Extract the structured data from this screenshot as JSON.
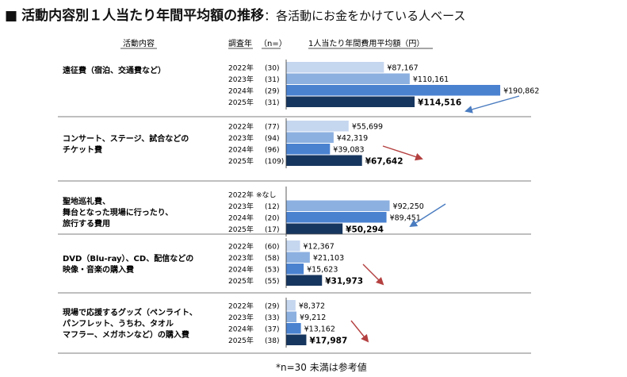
{
  "title": {
    "bullet": "■",
    "main": "活動内容別１人当たり年間平均額の推移",
    "sub": "：各活動にお金をかけている人ベース"
  },
  "header": {
    "activity": "活動内容",
    "year": "調査年",
    "n": "（n=）",
    "amount": "1人当たり年間費用平均額（円）"
  },
  "footnote": "*n=30 未満は参考値",
  "colors": {
    "2022": "#c5d6ef",
    "2023": "#8cb0e0",
    "2024": "#4a82d0",
    "2025": "#17365f",
    "arrow_up": "#4a7cc0",
    "arrow_down": "#b44040",
    "divider": "#555555"
  },
  "chart_data": {
    "type": "bar",
    "orientation": "horizontal",
    "unit": "円",
    "series_years": [
      "2022年",
      "2023年",
      "2024年",
      "2025年"
    ],
    "groups": [
      {
        "label_lines": [
          "遠征費（宿泊、交通費など）"
        ],
        "rows": [
          {
            "year": "2022年",
            "n": "(30)",
            "value": 87167,
            "label": "¥87,167"
          },
          {
            "year": "2023年",
            "n": "(31)",
            "value": 110161,
            "label": "¥110,161"
          },
          {
            "year": "2024年",
            "n": "(29)",
            "value": 190862,
            "label": "¥190,862"
          },
          {
            "year": "2025年",
            "n": "(31)",
            "value": 114516,
            "label": "¥114,516"
          }
        ],
        "trend": "down"
      },
      {
        "label_lines": [
          "コンサート、ステージ、試合などの",
          "チケット費"
        ],
        "rows": [
          {
            "year": "2022年",
            "n": "(77)",
            "value": 55699,
            "label": "¥55,699"
          },
          {
            "year": "2023年",
            "n": "(94)",
            "value": 42319,
            "label": "¥42,319"
          },
          {
            "year": "2024年",
            "n": "(96)",
            "value": 39083,
            "label": "¥39,083"
          },
          {
            "year": "2025年",
            "n": "(109)",
            "value": 67642,
            "label": "¥67,642"
          }
        ],
        "trend": "up"
      },
      {
        "label_lines": [
          "聖地巡礼費、",
          "舞台となった現場に行ったり、",
          "旅行する費用"
        ],
        "rows": [
          {
            "year": "2022年",
            "n": "※なし",
            "value": null,
            "label": ""
          },
          {
            "year": "2023年",
            "n": "(12)",
            "value": 92250,
            "label": "¥92,250"
          },
          {
            "year": "2024年",
            "n": "(20)",
            "value": 89451,
            "label": "¥89,451"
          },
          {
            "year": "2025年",
            "n": "(17)",
            "value": 50294,
            "label": "¥50,294"
          }
        ],
        "trend": "down"
      },
      {
        "label_lines": [
          "DVD（Blu-ray）、CD、配信などの",
          "映像・音楽の購入費"
        ],
        "rows": [
          {
            "year": "2022年",
            "n": "(60)",
            "value": 12367,
            "label": "¥12,367"
          },
          {
            "year": "2023年",
            "n": "(58)",
            "value": 21103,
            "label": "¥21,103"
          },
          {
            "year": "2024年",
            "n": "(53)",
            "value": 15623,
            "label": "¥15,623"
          },
          {
            "year": "2025年",
            "n": "(55)",
            "value": 31973,
            "label": "¥31,973"
          }
        ],
        "trend": "up"
      },
      {
        "label_lines": [
          "現場で応援するグッズ（ペンライト、",
          "パンフレット、うちわ、タオル",
          "マフラー、メガホンなど）の購入費"
        ],
        "rows": [
          {
            "year": "2022年",
            "n": "(29)",
            "value": 8372,
            "label": "¥8,372"
          },
          {
            "year": "2023年",
            "n": "(33)",
            "value": 9212,
            "label": "¥9,212"
          },
          {
            "year": "2024年",
            "n": "(37)",
            "value": 13162,
            "label": "¥13,162"
          },
          {
            "year": "2025年",
            "n": "(38)",
            "value": 17987,
            "label": "¥17,987"
          }
        ],
        "trend": "up"
      }
    ]
  }
}
